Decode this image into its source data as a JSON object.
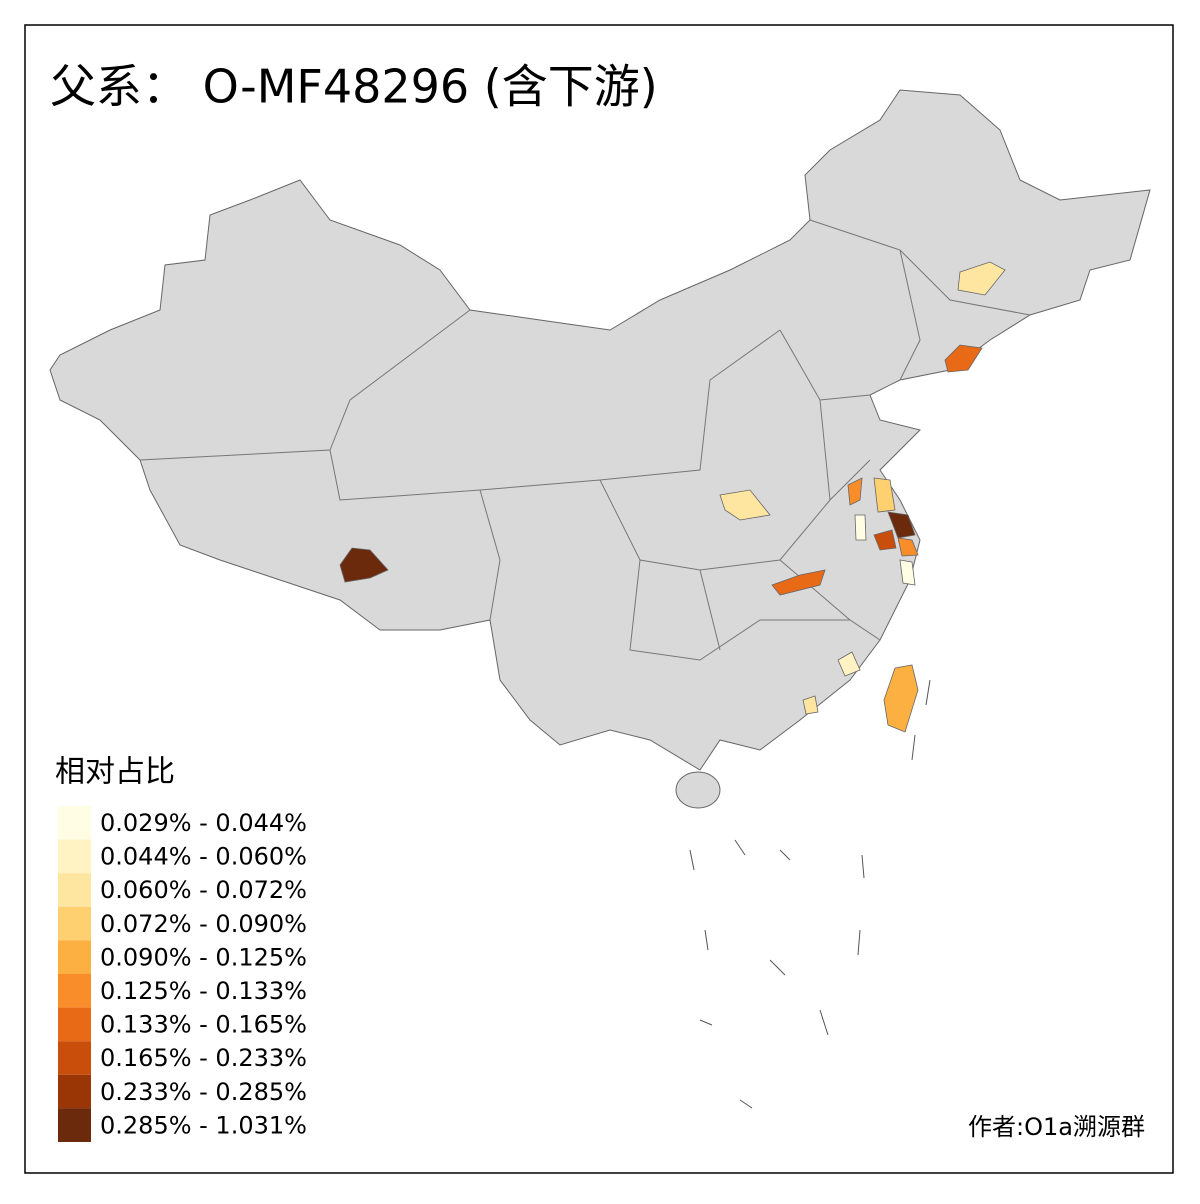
{
  "title": "父系： O-MF48296 (含下游)",
  "legend": {
    "title": "相对占比",
    "items": [
      {
        "label": "0.029% - 0.044%",
        "color": "#fffde4"
      },
      {
        "label": "0.044% - 0.060%",
        "color": "#fff3c4"
      },
      {
        "label": "0.060% - 0.072%",
        "color": "#fee6a0"
      },
      {
        "label": "0.072% - 0.090%",
        "color": "#fed070"
      },
      {
        "label": "0.090% - 0.125%",
        "color": "#fdb042"
      },
      {
        "label": "0.125% - 0.133%",
        "color": "#f98d2a"
      },
      {
        "label": "0.133% - 0.165%",
        "color": "#e86a17"
      },
      {
        "label": "0.165% - 0.233%",
        "color": "#c94d0b"
      },
      {
        "label": "0.233% - 0.285%",
        "color": "#9a3606"
      },
      {
        "label": "0.285% - 1.031%",
        "color": "#6b2a0c"
      }
    ]
  },
  "credit": "作者:O1a溯源群"
}
